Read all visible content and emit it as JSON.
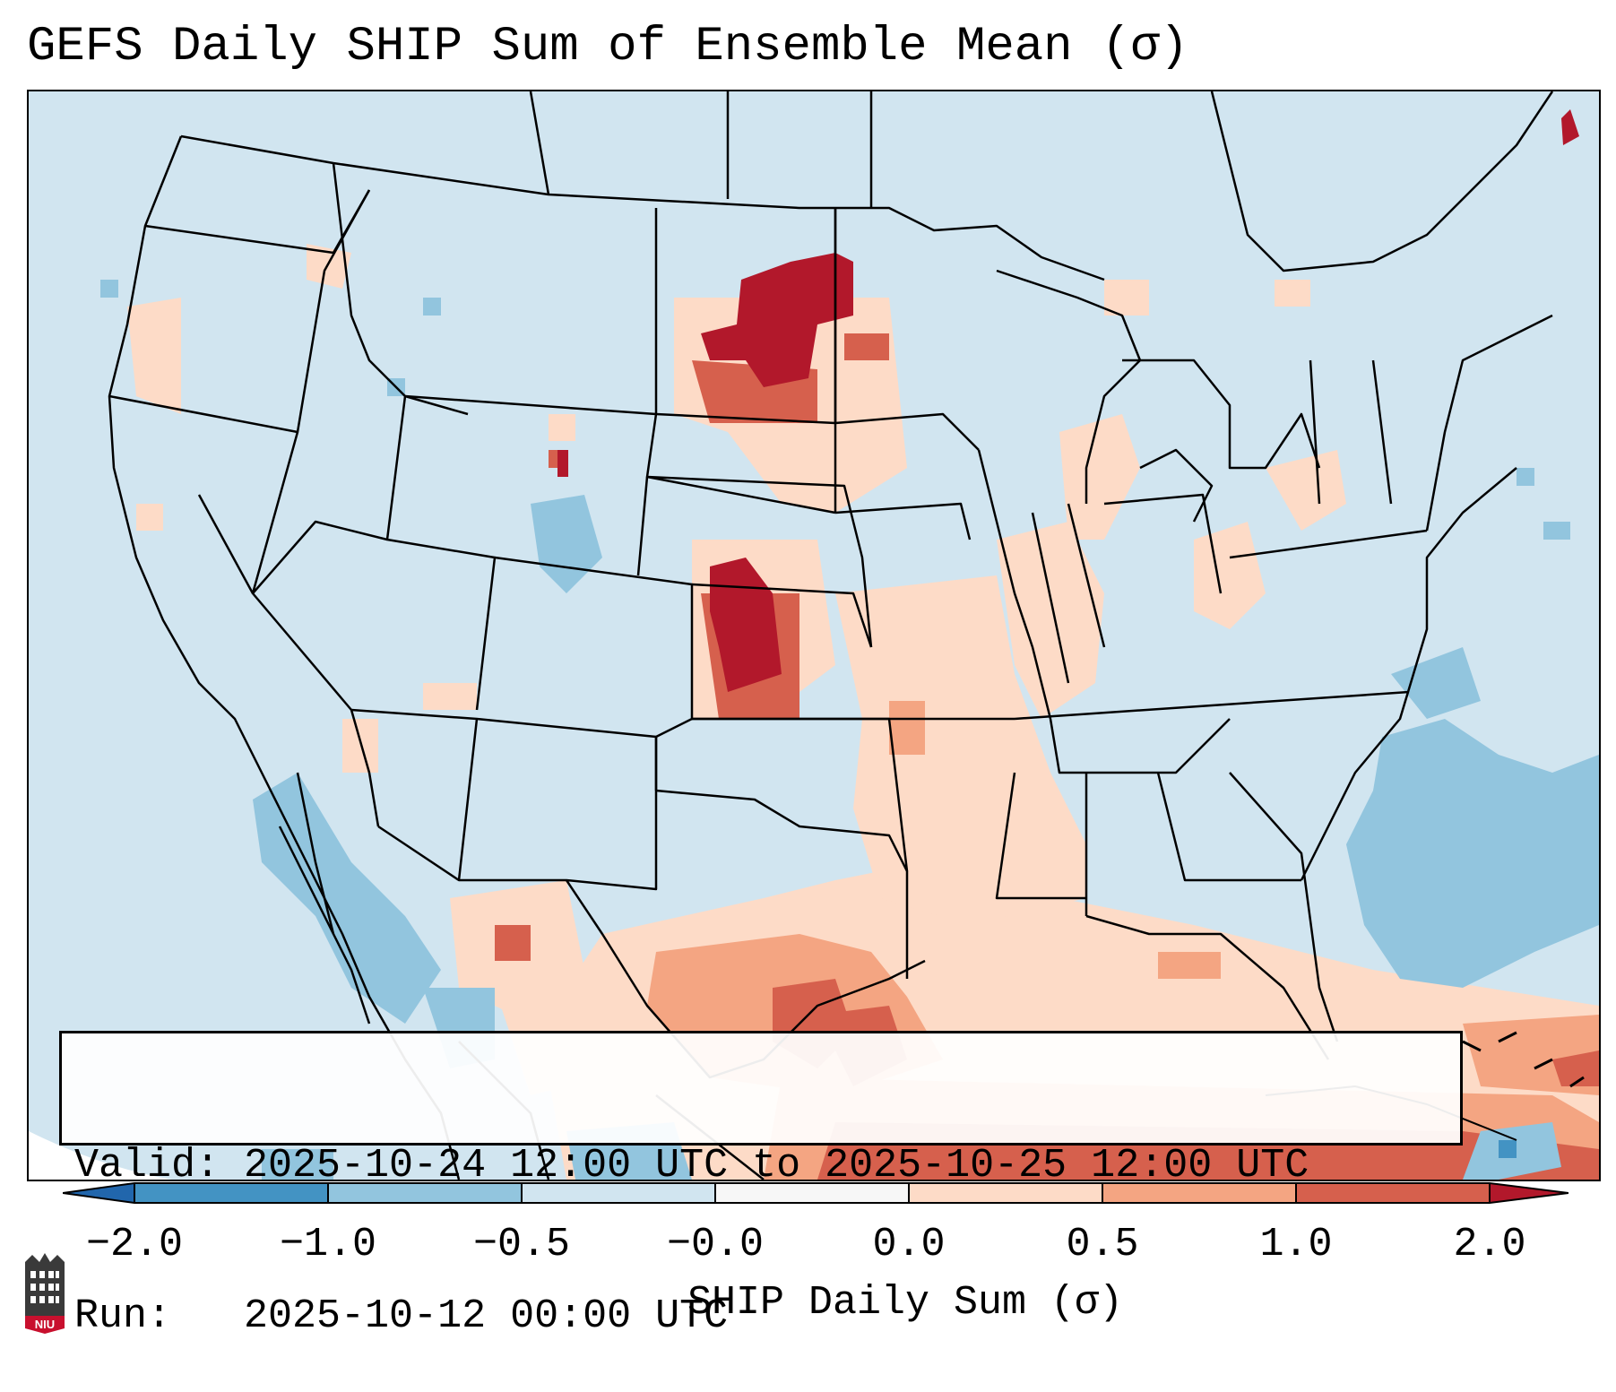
{
  "title": "GEFS Daily SHIP Sum of Ensemble Mean (σ)",
  "valid_line": "Valid: 2025-10-24 12:00 UTC to 2025-10-25 12:00 UTC",
  "run_line": "Run:   2025-10-12 00:00 UTC",
  "colorbar": {
    "label": "SHIP Daily Sum (σ)",
    "tick_labels": [
      "−2.0",
      "−1.0",
      "−0.5",
      "−0.0",
      "0.0",
      "0.5",
      "1.0",
      "2.0"
    ],
    "colors": [
      "#2166ac",
      "#4393c3",
      "#92c5de",
      "#d1e5f0",
      "#f7f7f7",
      "#fddbc7",
      "#f4a582",
      "#d6604d",
      "#b2182b"
    ]
  },
  "logo": {
    "text": "NIU",
    "colors": {
      "body": "#3a3a3a",
      "band": "#c8102e"
    }
  },
  "map": {
    "background_color": "#d1e5f0",
    "state_line_color": "#000000",
    "regions": [
      {
        "name": "northern-plains-high",
        "level": "above-2.0"
      },
      {
        "name": "central-plains-high",
        "level": "above-2.0"
      },
      {
        "name": "south-central-positive",
        "level": "0.5-1.0"
      },
      {
        "name": "gulf-positive",
        "level": "0.5-1.0"
      },
      {
        "name": "atlantic-negative",
        "level": "-1.0--0.5"
      },
      {
        "name": "gulf-of-california-negative",
        "level": "-1.0--0.5"
      }
    ]
  }
}
